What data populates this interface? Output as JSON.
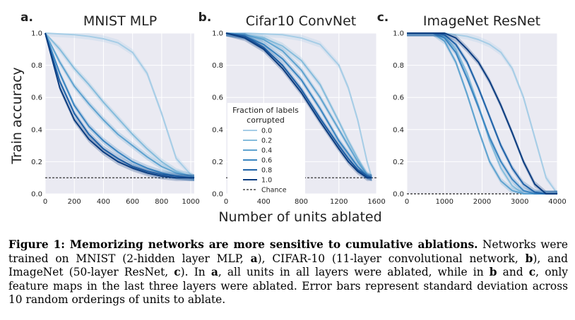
{
  "figure": {
    "ylabel": "Train accuracy",
    "xlabel": "Number of units ablated"
  },
  "caption": {
    "lead": "Figure 1:  Memorizing networks are more sensitive to cumulative ablations.",
    "s1": " Networks were trained on MNIST (2-hidden layer MLP, ",
    "a1": "a",
    "s2": "), CIFAR-10 (11-layer convolutional network, ",
    "b1": "b",
    "s3": "), and ImageNet (50-layer ResNet, ",
    "c1": "c",
    "s4": ").  In ",
    "a2": "a",
    "s5": ", all units in all layers were ablated, while in ",
    "b2": "b",
    "s6": " and ",
    "c2": "c",
    "s7": ", only feature maps in the last three layers were ablated. Error bars represent standard deviation across 10 random orderings of units to ablate."
  },
  "legend": {
    "title_line1": "Fraction of labels",
    "title_line2": "corrupted",
    "chance_label": "Chance"
  },
  "colors": {
    "series": [
      "#a6cde6",
      "#85bcdc",
      "#5fa3d0",
      "#3a85c1",
      "#1f62a8",
      "#0c3d80"
    ],
    "plot_bg": "#eaeaf2",
    "grid": "#ffffff",
    "chance": "#222222"
  },
  "chart_data": [
    {
      "panel": "a.",
      "type": "line",
      "title": "MNIST MLP",
      "ylabel": "Train accuracy",
      "xlim": [
        0,
        1024
      ],
      "ylim": [
        0,
        1.0
      ],
      "xticks": [
        0,
        200,
        400,
        600,
        800,
        1000
      ],
      "xtick_labels": [
        "0",
        "200",
        "400",
        "600",
        "800",
        "1000"
      ],
      "yticks": [
        0.0,
        0.2,
        0.4,
        0.6,
        0.8,
        1.0
      ],
      "ytick_labels": [
        "0.0",
        "0.2",
        "0.4",
        "0.6",
        "0.8",
        "1.0"
      ],
      "chance": 0.1,
      "x": [
        0,
        100,
        200,
        300,
        400,
        500,
        600,
        700,
        800,
        900,
        1000,
        1024
      ],
      "series": [
        {
          "name": "0.0",
          "values": [
            1.0,
            0.995,
            0.99,
            0.98,
            0.965,
            0.94,
            0.88,
            0.75,
            0.5,
            0.22,
            0.12,
            0.1
          ]
        },
        {
          "name": "0.2",
          "values": [
            1.0,
            0.9,
            0.78,
            0.68,
            0.57,
            0.47,
            0.37,
            0.28,
            0.2,
            0.14,
            0.11,
            0.1
          ]
        },
        {
          "name": "0.4",
          "values": [
            1.0,
            0.82,
            0.67,
            0.56,
            0.46,
            0.37,
            0.3,
            0.23,
            0.17,
            0.13,
            0.11,
            0.1
          ]
        },
        {
          "name": "0.6",
          "values": [
            1.0,
            0.75,
            0.55,
            0.42,
            0.33,
            0.26,
            0.2,
            0.16,
            0.13,
            0.11,
            0.1,
            0.1
          ]
        },
        {
          "name": "0.8",
          "values": [
            1.0,
            0.7,
            0.5,
            0.37,
            0.28,
            0.22,
            0.17,
            0.14,
            0.12,
            0.11,
            0.1,
            0.1
          ]
        },
        {
          "name": "1.0",
          "values": [
            1.0,
            0.66,
            0.46,
            0.34,
            0.26,
            0.2,
            0.16,
            0.13,
            0.11,
            0.1,
            0.1,
            0.1
          ]
        }
      ]
    },
    {
      "panel": "b.",
      "type": "line",
      "title": "Cifar10 ConvNet",
      "xlim": [
        0,
        1600
      ],
      "ylim": [
        0,
        1.0
      ],
      "xticks": [
        0,
        400,
        800,
        1200,
        1600
      ],
      "xtick_labels": [
        "0",
        "400",
        "800",
        "1200",
        "1600"
      ],
      "yticks": [
        0.0,
        0.2,
        0.4,
        0.6,
        0.8,
        1.0
      ],
      "ytick_labels": [
        "0.0",
        "0.2",
        "0.4",
        "0.6",
        "0.8",
        "1.0"
      ],
      "chance": 0.1,
      "x": [
        0,
        200,
        400,
        600,
        800,
        1000,
        1200,
        1300,
        1400,
        1500,
        1550
      ],
      "series": [
        {
          "name": "0.0",
          "values": [
            1.0,
            1.0,
            0.995,
            0.99,
            0.97,
            0.93,
            0.8,
            0.66,
            0.46,
            0.2,
            0.1
          ]
        },
        {
          "name": "0.2",
          "values": [
            1.0,
            0.99,
            0.97,
            0.92,
            0.83,
            0.68,
            0.45,
            0.33,
            0.22,
            0.12,
            0.1
          ]
        },
        {
          "name": "0.4",
          "values": [
            1.0,
            0.99,
            0.96,
            0.89,
            0.77,
            0.6,
            0.4,
            0.3,
            0.2,
            0.12,
            0.1
          ]
        },
        {
          "name": "0.6",
          "values": [
            1.0,
            0.98,
            0.93,
            0.84,
            0.71,
            0.53,
            0.33,
            0.25,
            0.17,
            0.11,
            0.1
          ]
        },
        {
          "name": "0.8",
          "values": [
            1.0,
            0.98,
            0.91,
            0.8,
            0.65,
            0.47,
            0.3,
            0.22,
            0.15,
            0.11,
            0.1
          ]
        },
        {
          "name": "1.0",
          "values": [
            1.0,
            0.97,
            0.9,
            0.78,
            0.63,
            0.45,
            0.28,
            0.2,
            0.14,
            0.1,
            0.1
          ]
        }
      ]
    },
    {
      "panel": "c.",
      "type": "line",
      "title": "ImageNet ResNet",
      "xlim": [
        0,
        4000
      ],
      "ylim": [
        0,
        1.0
      ],
      "xticks": [
        0,
        1000,
        2000,
        3000,
        4000
      ],
      "xtick_labels": [
        "0",
        "1000",
        "2000",
        "3000",
        "4000"
      ],
      "yticks": [
        0.0,
        0.2,
        0.4,
        0.6,
        0.8,
        1.0
      ],
      "ytick_labels": [
        "0.0",
        "0.2",
        "0.4",
        "0.6",
        "0.8",
        "1.0"
      ],
      "chance": 0.0,
      "x": [
        0,
        700,
        1000,
        1300,
        1600,
        1900,
        2200,
        2500,
        2800,
        3100,
        3400,
        3700,
        4000
      ],
      "series": [
        {
          "name": "0.0",
          "values": [
            1.0,
            1.0,
            1.0,
            0.99,
            0.98,
            0.96,
            0.93,
            0.88,
            0.78,
            0.6,
            0.35,
            0.1,
            0.0
          ]
        },
        {
          "name": "0.2",
          "values": [
            1.0,
            1.0,
            0.98,
            0.9,
            0.75,
            0.55,
            0.33,
            0.16,
            0.05,
            0.0,
            0.0,
            0.0,
            0.0
          ]
        },
        {
          "name": "0.4",
          "values": [
            1.0,
            1.0,
            0.95,
            0.82,
            0.62,
            0.4,
            0.2,
            0.08,
            0.02,
            0.0,
            0.0,
            0.0,
            0.0
          ]
        },
        {
          "name": "0.6",
          "values": [
            1.0,
            1.0,
            0.97,
            0.88,
            0.72,
            0.54,
            0.35,
            0.2,
            0.09,
            0.02,
            0.0,
            0.0,
            0.0
          ]
        },
        {
          "name": "0.8",
          "values": [
            1.0,
            1.0,
            0.99,
            0.93,
            0.82,
            0.66,
            0.48,
            0.3,
            0.16,
            0.06,
            0.01,
            0.0,
            0.0
          ]
        },
        {
          "name": "1.0",
          "values": [
            1.0,
            1.0,
            1.0,
            0.97,
            0.9,
            0.82,
            0.7,
            0.55,
            0.38,
            0.2,
            0.06,
            0.0,
            0.0
          ]
        }
      ]
    }
  ]
}
